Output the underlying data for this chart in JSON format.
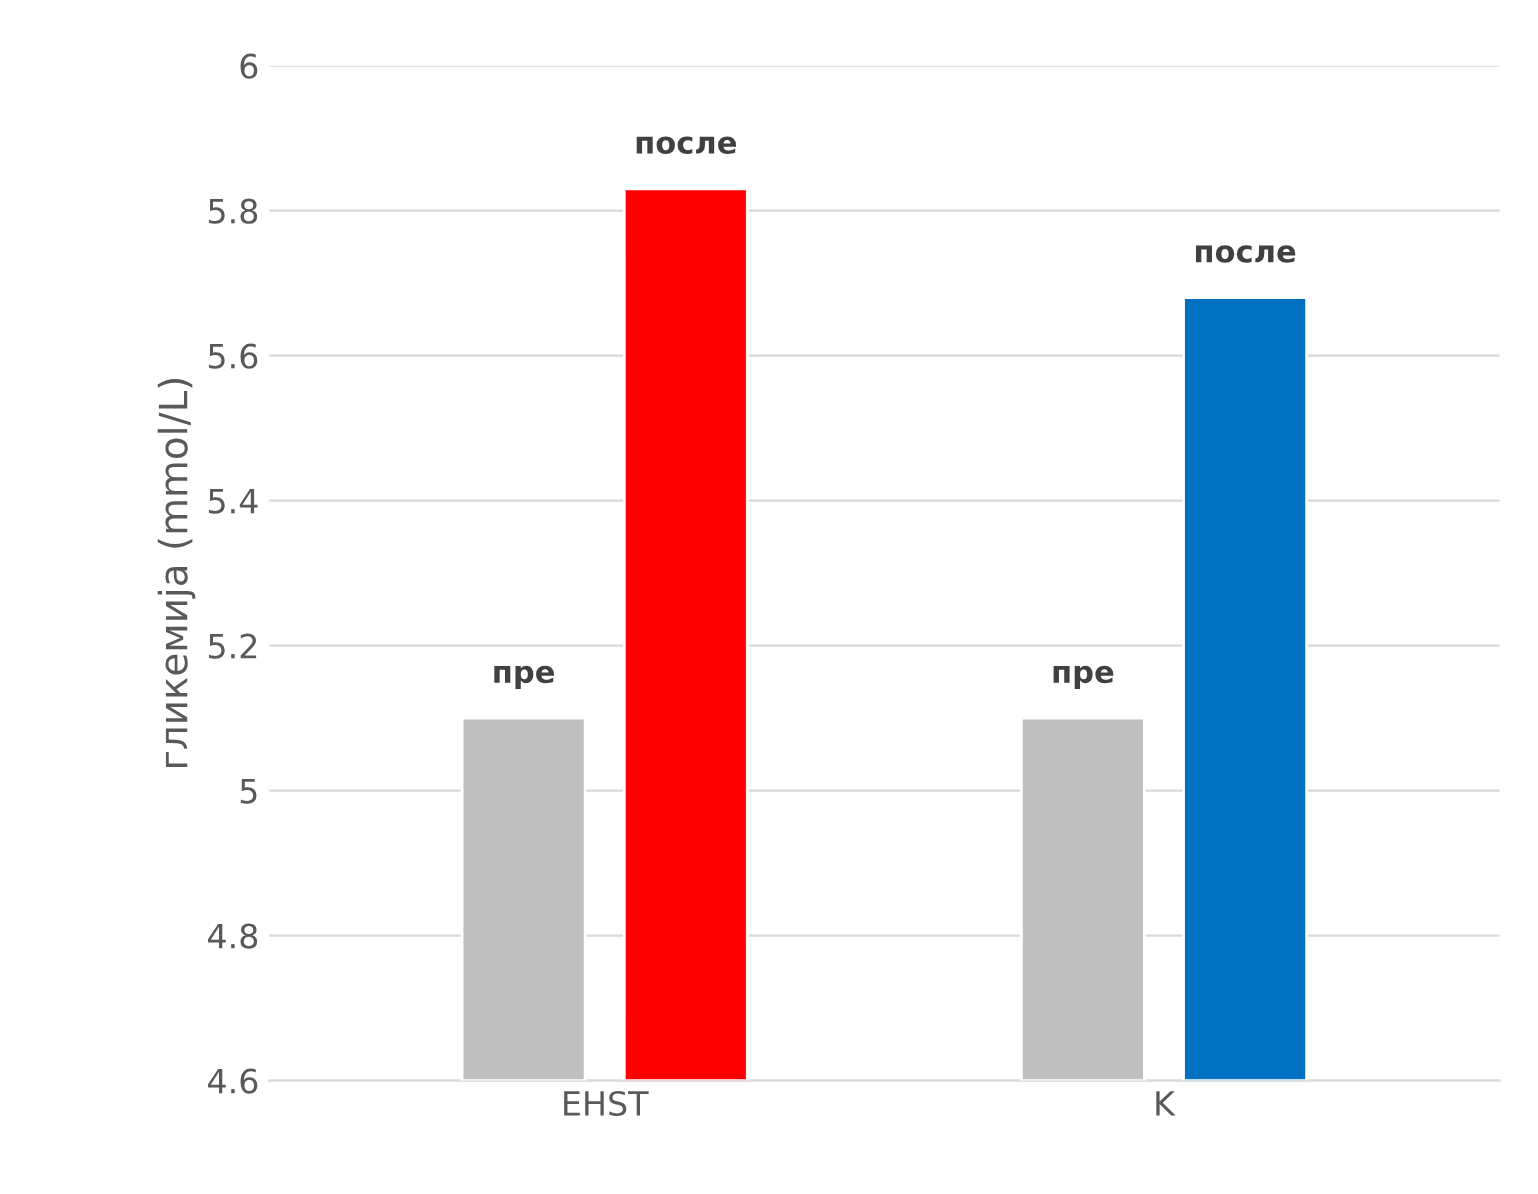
{
  "chart_data": {
    "type": "bar",
    "ylabel": "гликемија (mmol/L)",
    "categories": [
      "EHST",
      "K"
    ],
    "series": [
      {
        "name": "пре",
        "color": "#bfbfbf",
        "values": [
          5.1,
          5.1
        ]
      },
      {
        "name": "после",
        "colors": [
          "#ff0000",
          "#0070c0"
        ],
        "values": [
          5.83,
          5.68
        ]
      }
    ],
    "ylim": [
      4.6,
      6
    ],
    "yticks": [
      4.6,
      4.8,
      5,
      5.2,
      5.4,
      5.6,
      5.8,
      6
    ],
    "grid": "y",
    "legend": false
  }
}
